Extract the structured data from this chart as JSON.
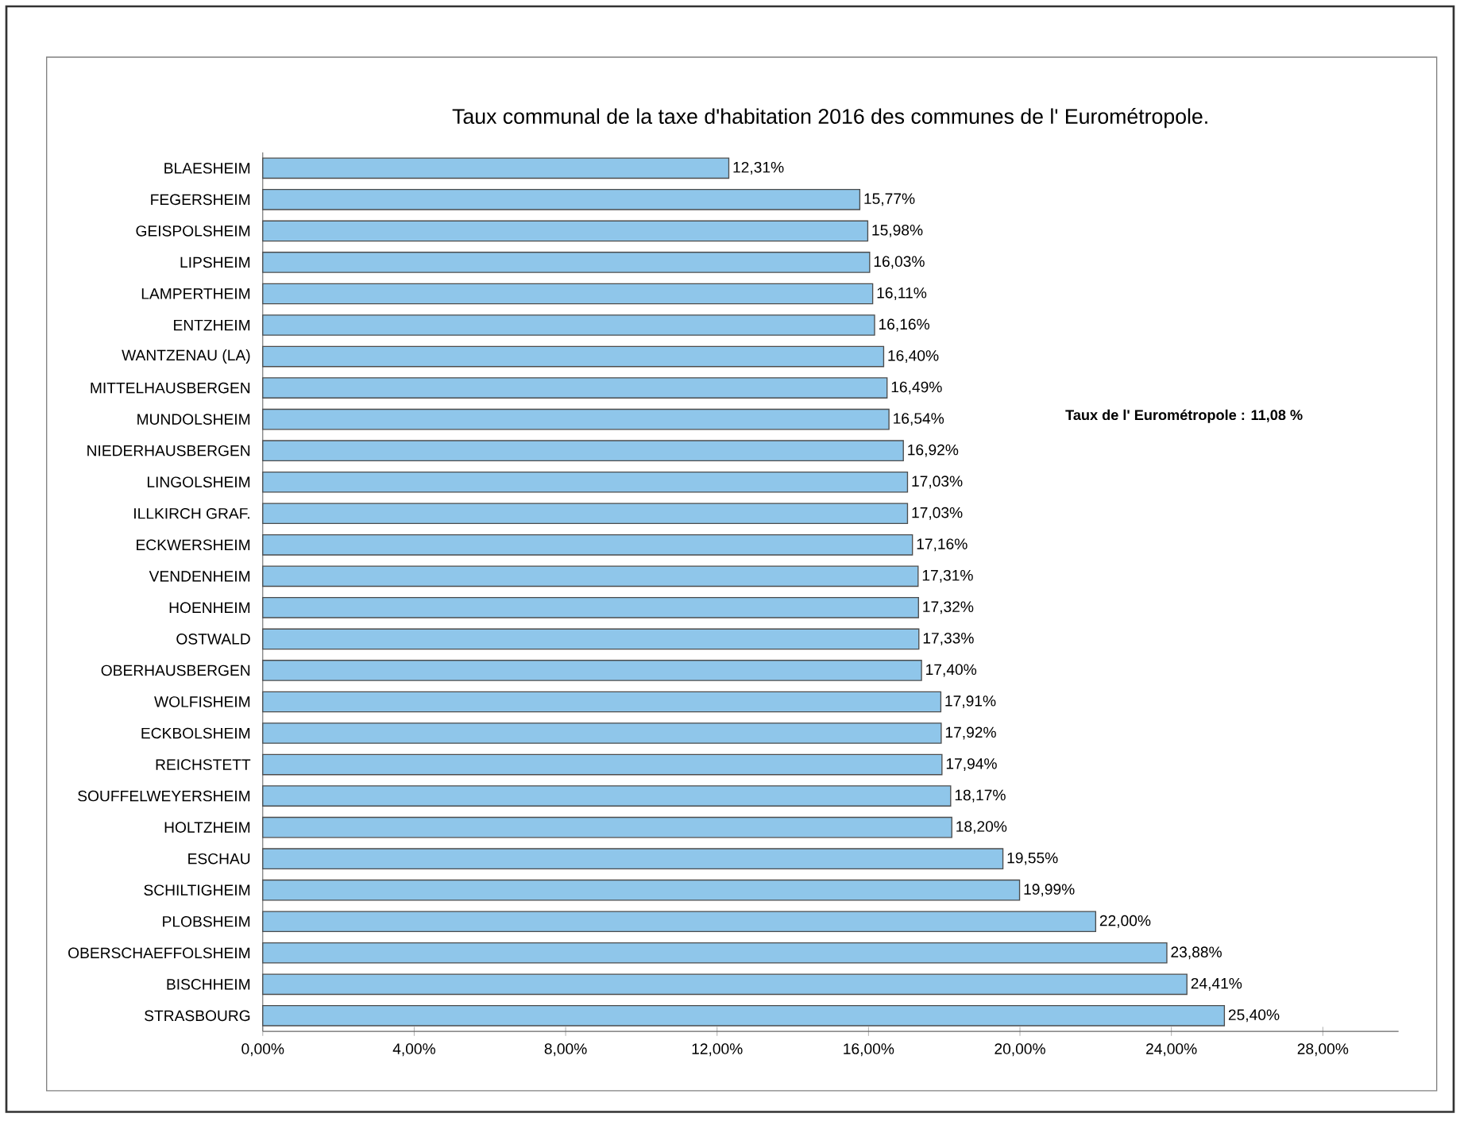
{
  "chart_data": {
    "type": "bar",
    "orientation": "horizontal",
    "title": "Taux communal de la taxe d'habitation 2016 des communes de l' Eurométropole.",
    "categories": [
      "BLAESHEIM",
      "FEGERSHEIM",
      "GEISPOLSHEIM",
      "LIPSHEIM",
      "LAMPERTHEIM",
      "ENTZHEIM",
      "WANTZENAU (LA)",
      "MITTELHAUSBERGEN",
      "MUNDOLSHEIM",
      "NIEDERHAUSBERGEN",
      "LINGOLSHEIM",
      "ILLKIRCH GRAF.",
      "ECKWERSHEIM",
      "VENDENHEIM",
      "HOENHEIM",
      "OSTWALD",
      "OBERHAUSBERGEN",
      "WOLFISHEIM",
      "ECKBOLSHEIM",
      "REICHSTETT",
      "SOUFFELWEYERSHEIM",
      "HOLTZHEIM",
      "ESCHAU",
      "SCHILTIGHEIM",
      "PLOBSHEIM",
      "OBERSCHAEFFOLSHEIM",
      "BISCHHEIM",
      "STRASBOURG"
    ],
    "values": [
      12.31,
      15.77,
      15.98,
      16.03,
      16.11,
      16.16,
      16.4,
      16.49,
      16.54,
      16.92,
      17.03,
      17.03,
      17.16,
      17.31,
      17.32,
      17.33,
      17.4,
      17.91,
      17.92,
      17.94,
      18.17,
      18.2,
      19.55,
      19.99,
      22.0,
      23.88,
      24.41,
      25.4
    ],
    "value_labels": [
      "12,31%",
      "15,77%",
      "15,98%",
      "16,03%",
      "16,11%",
      "16,16%",
      "16,40%",
      "16,49%",
      "16,54%",
      "16,92%",
      "17,03%",
      "17,03%",
      "17,16%",
      "17,31%",
      "17,32%",
      "17,33%",
      "17,40%",
      "17,91%",
      "17,92%",
      "17,94%",
      "18,17%",
      "18,20%",
      "19,55%",
      "19,99%",
      "22,00%",
      "23,88%",
      "24,41%",
      "25,40%"
    ],
    "color": "#8fc6ea",
    "xlim": [
      0,
      30
    ],
    "xticks": [
      {
        "value": 0,
        "label": "0,00%"
      },
      {
        "value": 4,
        "label": "4,00%"
      },
      {
        "value": 8,
        "label": "8,00%"
      },
      {
        "value": 12,
        "label": "12,00%"
      },
      {
        "value": 16,
        "label": "16,00%"
      },
      {
        "value": 20,
        "label": "20,00%"
      },
      {
        "value": 24,
        "label": "24,00%"
      },
      {
        "value": 28,
        "label": "28,00%"
      }
    ],
    "annotations": [
      "Taux de l' Eurométropole :  11,08 %"
    ],
    "grid": false
  }
}
